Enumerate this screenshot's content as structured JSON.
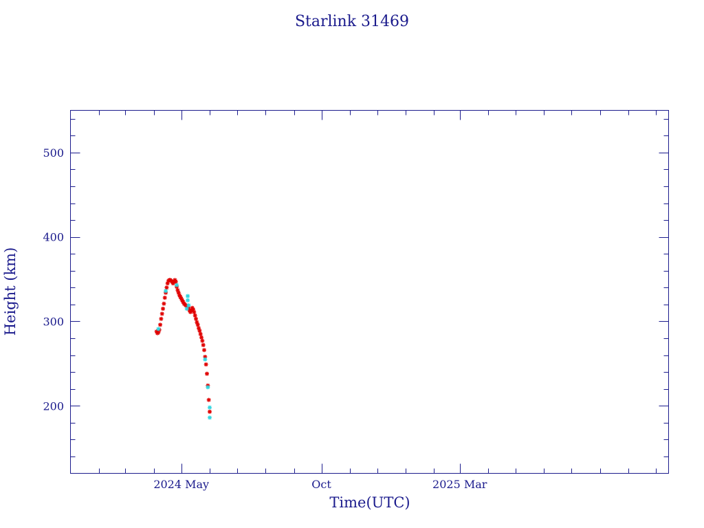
{
  "chart_data": {
    "type": "scatter",
    "title": "Starlink 31469",
    "xlabel": "Time(UTC)",
    "ylabel": "Height (km)",
    "x_axis": "date",
    "xlim": [
      "2024-01-01",
      "2025-10-15"
    ],
    "ylim": [
      120,
      550
    ],
    "y_ticks": [
      200,
      300,
      400,
      500
    ],
    "x_ticks": [
      {
        "date": "2024-05-01",
        "label": "2024 May"
      },
      {
        "date": "2024-10-01",
        "label": "Oct"
      },
      {
        "date": "2025-03-01",
        "label": "2025 Mar"
      }
    ],
    "colors": {
      "axis": "#1a1a8c",
      "series_primary": "#e00000",
      "series_secondary": "#33d6e0"
    },
    "series": [
      {
        "marker": "star",
        "color": "#e00000",
        "points": [
          [
            "2024-04-04",
            288
          ],
          [
            "2024-04-05",
            286
          ],
          [
            "2024-04-06",
            287
          ],
          [
            "2024-04-07",
            290
          ],
          [
            "2024-04-08",
            296
          ],
          [
            "2024-04-09",
            303
          ],
          [
            "2024-04-10",
            309
          ],
          [
            "2024-04-11",
            315
          ],
          [
            "2024-04-12",
            321
          ],
          [
            "2024-04-13",
            328
          ],
          [
            "2024-04-14",
            334
          ],
          [
            "2024-04-15",
            340
          ],
          [
            "2024-04-16",
            345
          ],
          [
            "2024-04-17",
            348
          ],
          [
            "2024-04-18",
            349
          ],
          [
            "2024-04-19",
            349
          ],
          [
            "2024-04-20",
            348
          ],
          [
            "2024-04-21",
            347
          ],
          [
            "2024-04-22",
            345
          ],
          [
            "2024-04-23",
            347
          ],
          [
            "2024-04-24",
            349
          ],
          [
            "2024-04-25",
            347
          ],
          [
            "2024-04-26",
            341
          ],
          [
            "2024-04-27",
            337
          ],
          [
            "2024-04-28",
            334
          ],
          [
            "2024-04-29",
            331
          ],
          [
            "2024-04-30",
            329
          ],
          [
            "2024-05-01",
            327
          ],
          [
            "2024-05-02",
            325
          ],
          [
            "2024-05-03",
            323
          ],
          [
            "2024-05-04",
            321
          ],
          [
            "2024-05-05",
            320
          ],
          [
            "2024-05-06",
            319
          ],
          [
            "2024-05-07",
            318
          ],
          [
            "2024-05-08",
            318
          ],
          [
            "2024-05-09",
            316
          ],
          [
            "2024-05-10",
            313
          ],
          [
            "2024-05-11",
            311
          ],
          [
            "2024-05-12",
            313
          ],
          [
            "2024-05-13",
            316
          ],
          [
            "2024-05-14",
            314
          ],
          [
            "2024-05-15",
            311
          ],
          [
            "2024-05-16",
            307
          ],
          [
            "2024-05-17",
            303
          ],
          [
            "2024-05-18",
            299
          ],
          [
            "2024-05-19",
            296
          ],
          [
            "2024-05-20",
            292
          ],
          [
            "2024-05-21",
            289
          ],
          [
            "2024-05-22",
            285
          ],
          [
            "2024-05-23",
            281
          ],
          [
            "2024-05-24",
            277
          ],
          [
            "2024-05-25",
            272
          ],
          [
            "2024-05-26",
            266
          ],
          [
            "2024-05-27",
            258
          ],
          [
            "2024-05-28",
            249
          ],
          [
            "2024-05-29",
            238
          ],
          [
            "2024-05-30",
            224
          ],
          [
            "2024-05-31",
            207
          ],
          [
            "2024-06-01",
            193
          ]
        ]
      },
      {
        "marker": "star",
        "color": "#33d6e0",
        "points": [
          [
            "2024-04-06",
            291
          ],
          [
            "2024-04-14",
            336
          ],
          [
            "2024-04-26",
            343
          ],
          [
            "2024-05-07",
            315
          ],
          [
            "2024-05-08",
            325
          ],
          [
            "2024-05-08",
            330
          ],
          [
            "2024-05-09",
            319
          ],
          [
            "2024-05-27",
            255
          ],
          [
            "2024-05-30",
            222
          ],
          [
            "2024-06-01",
            198
          ],
          [
            "2024-06-01",
            186
          ]
        ]
      }
    ]
  }
}
